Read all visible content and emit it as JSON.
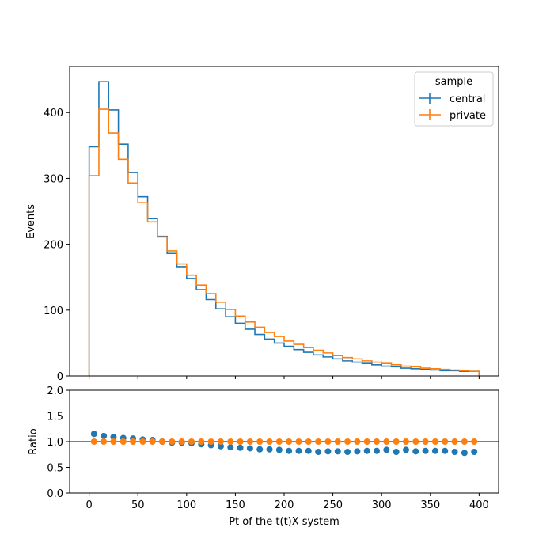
{
  "chart_data": [
    {
      "type": "step",
      "panel": "main",
      "xlabel": "",
      "ylabel": "Events",
      "xlim": [
        -20,
        420
      ],
      "ylim": [
        0,
        470
      ],
      "xticks": [
        0,
        50,
        100,
        150,
        200,
        250,
        300,
        350,
        400
      ],
      "yticks": [
        0,
        100,
        200,
        300,
        400
      ],
      "bin_edges": [
        0,
        10,
        20,
        30,
        40,
        50,
        60,
        70,
        80,
        90,
        100,
        110,
        120,
        130,
        140,
        150,
        160,
        170,
        180,
        190,
        200,
        210,
        220,
        230,
        240,
        250,
        260,
        270,
        280,
        290,
        300,
        310,
        320,
        330,
        340,
        350,
        360,
        370,
        380,
        390,
        400
      ],
      "series": [
        {
          "name": "central",
          "color": "#1f77b4",
          "values": [
            348,
            447,
            404,
            352,
            309,
            272,
            239,
            212,
            186,
            166,
            148,
            131,
            116,
            102,
            90,
            80,
            71,
            63,
            56,
            50,
            45,
            40,
            36,
            32,
            29,
            26,
            23,
            21,
            19,
            17,
            15,
            14,
            12,
            11,
            10,
            9,
            8,
            8,
            7,
            7
          ]
        },
        {
          "name": "private",
          "color": "#ff7f0e",
          "values": [
            304,
            405,
            369,
            329,
            293,
            263,
            234,
            211,
            190,
            170,
            153,
            138,
            125,
            112,
            101,
            91,
            82,
            74,
            66,
            60,
            53,
            48,
            43,
            39,
            35,
            31,
            28,
            26,
            23,
            21,
            19,
            17,
            15,
            14,
            12,
            11,
            10,
            9,
            8,
            7
          ]
        }
      ],
      "legend": {
        "title": "sample",
        "placement": "top-right",
        "entries": [
          "central",
          "private"
        ]
      }
    },
    {
      "type": "scatter",
      "panel": "ratio",
      "xlabel": "Pt of the t(t)X system",
      "ylabel": "Ratio",
      "xlim": [
        -20,
        420
      ],
      "ylim": [
        0,
        2.0
      ],
      "xticks": [
        0,
        50,
        100,
        150,
        200,
        250,
        300,
        350,
        400
      ],
      "yticks": [
        "0.0",
        "0.5",
        "1.0",
        "1.5",
        "2.0"
      ],
      "reference_line": 1.0,
      "x": [
        5,
        15,
        25,
        35,
        45,
        55,
        65,
        75,
        85,
        95,
        105,
        115,
        125,
        135,
        145,
        155,
        165,
        175,
        185,
        195,
        205,
        215,
        225,
        235,
        245,
        255,
        265,
        275,
        285,
        295,
        305,
        315,
        325,
        335,
        345,
        355,
        365,
        375,
        385,
        395
      ],
      "series": [
        {
          "name": "central",
          "color": "#1f77b4",
          "values": [
            1.15,
            1.11,
            1.09,
            1.07,
            1.06,
            1.04,
            1.03,
            1.0,
            0.98,
            0.98,
            0.97,
            0.95,
            0.93,
            0.91,
            0.89,
            0.88,
            0.87,
            0.85,
            0.85,
            0.84,
            0.82,
            0.82,
            0.82,
            0.8,
            0.81,
            0.81,
            0.8,
            0.81,
            0.82,
            0.82,
            0.84,
            0.8,
            0.84,
            0.81,
            0.82,
            0.82,
            0.82,
            0.8,
            0.78,
            0.8
          ]
        },
        {
          "name": "private",
          "color": "#ff7f0e",
          "values": [
            1,
            1,
            1,
            1,
            1,
            1,
            1,
            1,
            1,
            1,
            1,
            1,
            1,
            1,
            1,
            1,
            1,
            1,
            1,
            1,
            1,
            1,
            1,
            1,
            1,
            1,
            1,
            1,
            1,
            1,
            1,
            1,
            1,
            1,
            1,
            1,
            1,
            1,
            1,
            1
          ]
        }
      ]
    }
  ]
}
